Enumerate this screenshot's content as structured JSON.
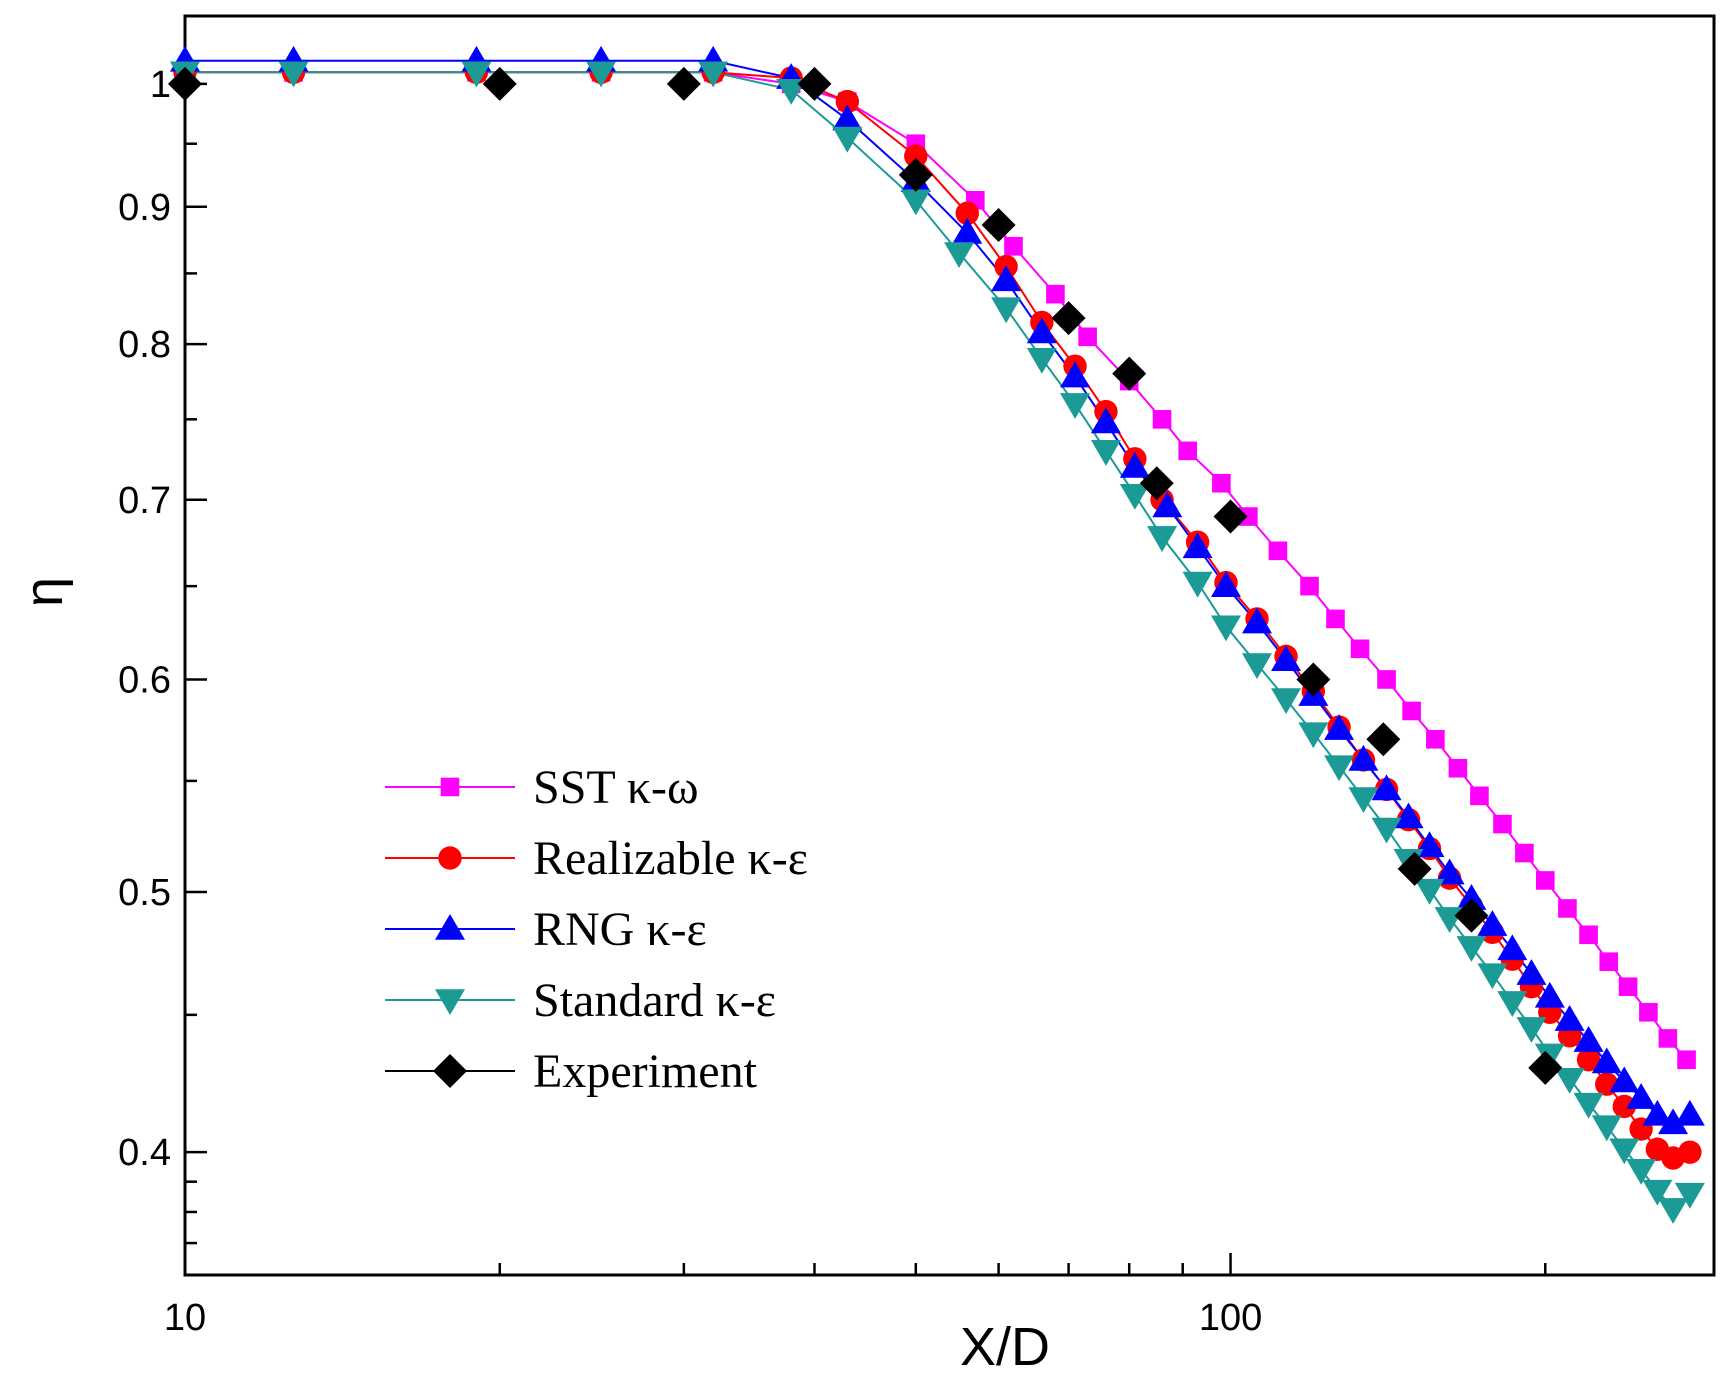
{
  "chart_data": {
    "type": "line",
    "xlabel": "X/D",
    "ylabel": "η",
    "xscale": "log",
    "yscale": "log",
    "xlim": [
      10,
      290
    ],
    "ylim": [
      0.36,
      1.06
    ],
    "xticks": [
      10,
      100
    ],
    "xtick_labels": [
      "10",
      "100"
    ],
    "yticks": [
      0.4,
      0.5,
      0.6,
      0.7,
      0.8,
      0.9,
      1
    ],
    "ytick_labels": [
      "0.4",
      "0.5",
      "0.6",
      "0.7",
      "0.8",
      "0.9",
      "1"
    ],
    "legend_position": "lower-left",
    "series": [
      {
        "name": "SST κ-ω",
        "color": "#ff00ff",
        "marker": "square",
        "x": [
          10,
          12.7,
          19,
          25,
          32,
          38,
          43,
          50,
          57,
          62,
          68,
          73,
          80,
          86,
          91,
          98,
          104,
          111,
          119,
          126,
          133,
          141,
          149,
          157,
          165,
          173,
          182,
          191,
          200,
          210,
          220,
          230,
          240,
          251,
          262,
          273
        ],
        "y": [
          1.01,
          1.01,
          1.01,
          1.01,
          1.01,
          1.0,
          0.985,
          0.95,
          0.905,
          0.87,
          0.835,
          0.805,
          0.775,
          0.75,
          0.73,
          0.71,
          0.69,
          0.67,
          0.65,
          0.632,
          0.616,
          0.6,
          0.584,
          0.57,
          0.556,
          0.543,
          0.53,
          0.517,
          0.505,
          0.493,
          0.482,
          0.471,
          0.461,
          0.451,
          0.441,
          0.433
        ]
      },
      {
        "name": "Realizable κ-ε",
        "color": "#ff0000",
        "marker": "circle",
        "x": [
          10,
          12.7,
          19,
          25,
          32,
          38,
          43,
          50,
          56,
          61,
          66,
          71,
          76,
          81,
          86,
          93,
          99,
          106,
          113,
          120,
          127,
          134,
          141,
          148,
          155,
          162,
          170,
          178,
          186,
          194,
          202,
          211,
          220,
          229,
          238,
          247,
          256,
          265,
          275
        ],
        "y": [
          1.01,
          1.01,
          1.01,
          1.01,
          1.01,
          1.005,
          0.985,
          0.94,
          0.895,
          0.855,
          0.815,
          0.785,
          0.755,
          0.725,
          0.7,
          0.675,
          0.652,
          0.632,
          0.612,
          0.594,
          0.576,
          0.56,
          0.546,
          0.532,
          0.519,
          0.506,
          0.494,
          0.483,
          0.472,
          0.461,
          0.451,
          0.442,
          0.433,
          0.424,
          0.416,
          0.408,
          0.401,
          0.398,
          0.4
        ]
      },
      {
        "name": "RNG κ-ε",
        "color": "#0000ff",
        "marker": "triangle-up",
        "x": [
          10,
          12.7,
          19,
          25,
          32,
          38,
          43,
          50,
          56,
          61,
          66,
          71,
          76,
          81,
          87,
          93,
          99,
          106,
          113,
          120,
          127,
          134,
          141,
          148,
          155,
          162,
          170,
          178,
          186,
          194,
          202,
          211,
          220,
          229,
          238,
          247,
          256,
          265,
          275
        ],
        "y": [
          1.02,
          1.02,
          1.02,
          1.02,
          1.02,
          1.005,
          0.97,
          0.92,
          0.88,
          0.845,
          0.808,
          0.778,
          0.748,
          0.72,
          0.696,
          0.672,
          0.65,
          0.63,
          0.61,
          0.592,
          0.575,
          0.56,
          0.546,
          0.533,
          0.52,
          0.508,
          0.497,
          0.486,
          0.476,
          0.466,
          0.457,
          0.448,
          0.44,
          0.432,
          0.425,
          0.419,
          0.413,
          0.41,
          0.413
        ]
      },
      {
        "name": "Standard κ-ε",
        "color": "#1b9a96",
        "marker": "triangle-down",
        "x": [
          10,
          12.7,
          19,
          25,
          32,
          38,
          43,
          50,
          55,
          61,
          66,
          71,
          76,
          81,
          86,
          93,
          99,
          106,
          113,
          120,
          127,
          134,
          141,
          148,
          155,
          162,
          170,
          178,
          186,
          194,
          202,
          211,
          220,
          229,
          238,
          247,
          256,
          265,
          275
        ],
        "y": [
          1.01,
          1.01,
          1.01,
          1.01,
          1.01,
          0.995,
          0.955,
          0.905,
          0.865,
          0.825,
          0.79,
          0.76,
          0.73,
          0.703,
          0.678,
          0.652,
          0.628,
          0.608,
          0.59,
          0.573,
          0.557,
          0.542,
          0.528,
          0.514,
          0.501,
          0.489,
          0.477,
          0.466,
          0.455,
          0.445,
          0.435,
          0.426,
          0.417,
          0.409,
          0.401,
          0.394,
          0.387,
          0.381,
          0.386
        ]
      },
      {
        "name": "Experiment",
        "color": "#000000",
        "marker": "diamond",
        "x": [
          10,
          20,
          30,
          40,
          50,
          60,
          70,
          80,
          85,
          100,
          120,
          140,
          150,
          170,
          200
        ],
        "y": [
          1.0,
          1.0,
          1.0,
          1.0,
          0.925,
          0.886,
          0.818,
          0.78,
          0.71,
          0.69,
          0.6,
          0.57,
          0.51,
          0.49,
          0.43
        ]
      }
    ]
  }
}
